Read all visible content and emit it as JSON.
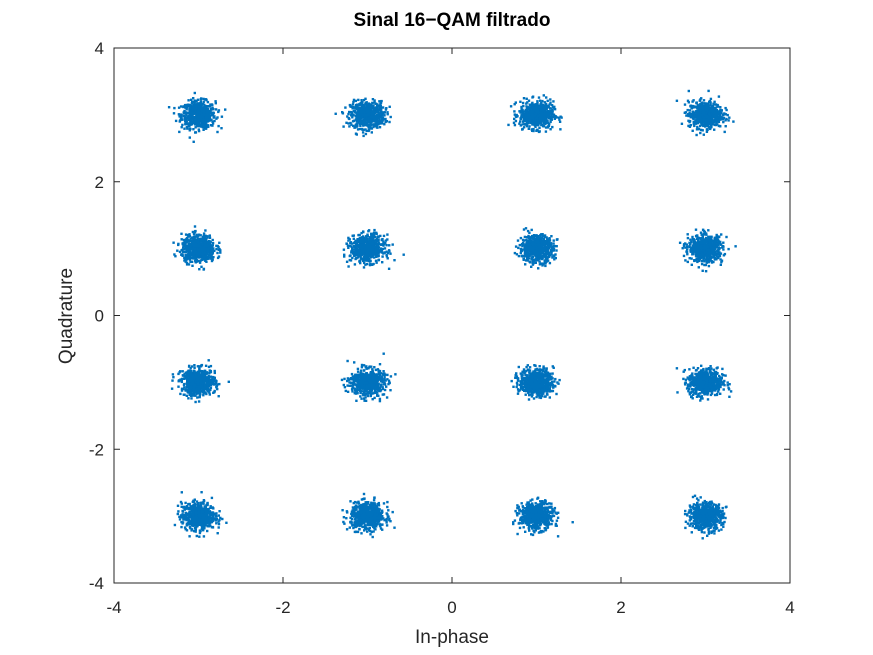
{
  "chart_data": {
    "type": "scatter",
    "title": "Sinal 16−QAM filtrado",
    "xlabel": "In-phase",
    "ylabel": "Quadrature",
    "xlim": [
      -4,
      4
    ],
    "ylim": [
      -4,
      4
    ],
    "xticks": [
      -4,
      -2,
      0,
      2,
      4
    ],
    "yticks": [
      -4,
      -2,
      0,
      2,
      4
    ],
    "xtick_labels": [
      "-4",
      "-2",
      "0",
      "2",
      "4"
    ],
    "ytick_labels": [
      "-4",
      "-2",
      "0",
      "2",
      "4"
    ],
    "grid": false,
    "marker_color": "#0072BD",
    "series": [
      {
        "points": [
          [
            -3,
            3
          ],
          [
            -1,
            3
          ],
          [
            1,
            3
          ],
          [
            3,
            3
          ],
          [
            -3,
            1
          ],
          [
            -1,
            1
          ],
          [
            1,
            1
          ],
          [
            3,
            1
          ],
          [
            -3,
            -1
          ],
          [
            -1,
            -1
          ],
          [
            1,
            -1
          ],
          [
            3,
            -1
          ],
          [
            -3,
            -3
          ],
          [
            -1,
            -3
          ],
          [
            1,
            -3
          ],
          [
            3,
            -3
          ]
        ],
        "spread_std": 0.1
      }
    ]
  }
}
